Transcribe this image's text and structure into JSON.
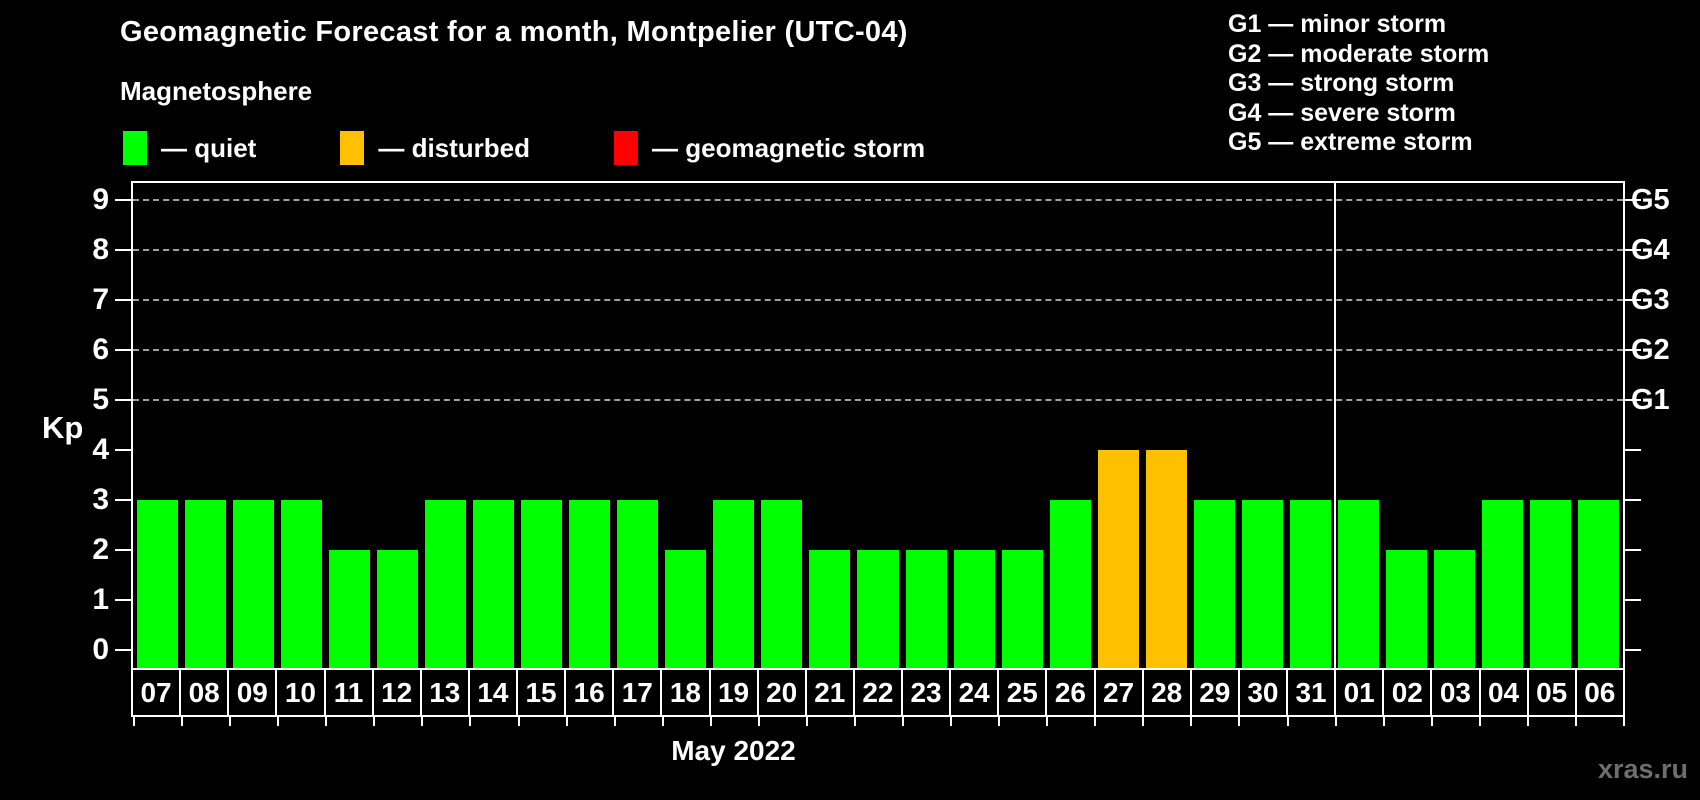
{
  "title": "Geomagnetic Forecast for a month, Montpelier (UTC-04)",
  "subtitle": "Magnetosphere",
  "legend": {
    "items": [
      {
        "name": "quiet",
        "label": "— quiet",
        "color": "#00ff00"
      },
      {
        "name": "disturbed",
        "label": "— disturbed",
        "color": "#ffc000"
      },
      {
        "name": "storm",
        "label": "— geomagnetic storm",
        "color": "#ff0000"
      }
    ]
  },
  "g_legend": [
    "G1 — minor storm",
    "G2 — moderate storm",
    "G3 — strong storm",
    "G4 — severe storm",
    "G5 — extreme storm"
  ],
  "watermark": "xras.ru",
  "chart_data": {
    "type": "bar",
    "title": "Geomagnetic Forecast for a month, Montpelier (UTC-04)",
    "ylabel": "Kp",
    "xlabel": "May 2022",
    "ylim": [
      0,
      9
    ],
    "yticks": [
      0,
      1,
      2,
      3,
      4,
      5,
      6,
      7,
      8,
      9
    ],
    "grid_levels": [
      5,
      6,
      7,
      8,
      9
    ],
    "grid_style": "dashed",
    "legend_position": "top",
    "right_axis_labels": [
      {
        "kp": 5,
        "label": "G1"
      },
      {
        "kp": 6,
        "label": "G2"
      },
      {
        "kp": 7,
        "label": "G3"
      },
      {
        "kp": 8,
        "label": "G4"
      },
      {
        "kp": 9,
        "label": "G5"
      }
    ],
    "categories": [
      "07",
      "08",
      "09",
      "10",
      "11",
      "12",
      "13",
      "14",
      "15",
      "16",
      "17",
      "18",
      "19",
      "20",
      "21",
      "22",
      "23",
      "24",
      "25",
      "26",
      "27",
      "28",
      "29",
      "30",
      "31",
      "01",
      "02",
      "03",
      "04",
      "05",
      "06"
    ],
    "values": [
      3,
      3,
      3,
      3,
      2,
      2,
      3,
      3,
      3,
      3,
      3,
      2,
      3,
      3,
      2,
      2,
      2,
      2,
      2,
      3,
      4,
      4,
      3,
      3,
      3,
      3,
      2,
      2,
      3,
      3,
      3
    ],
    "statuses": [
      "quiet",
      "quiet",
      "quiet",
      "quiet",
      "quiet",
      "quiet",
      "quiet",
      "quiet",
      "quiet",
      "quiet",
      "quiet",
      "quiet",
      "quiet",
      "quiet",
      "quiet",
      "quiet",
      "quiet",
      "quiet",
      "quiet",
      "quiet",
      "disturbed",
      "disturbed",
      "quiet",
      "quiet",
      "quiet",
      "quiet",
      "quiet",
      "quiet",
      "quiet",
      "quiet",
      "quiet"
    ],
    "status_colors": {
      "quiet": "#00ff00",
      "disturbed": "#ffc000",
      "storm": "#ff0000"
    },
    "separator_index": 25
  }
}
